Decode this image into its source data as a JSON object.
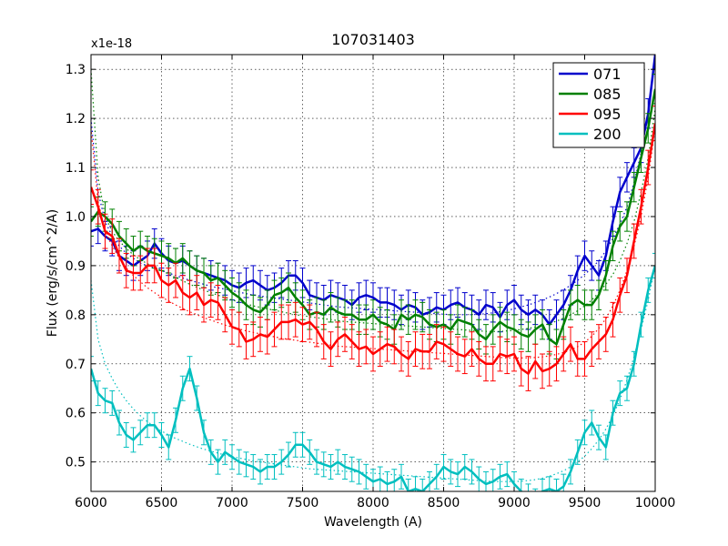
{
  "chart_data": {
    "type": "line",
    "title": "107031403",
    "xlabel": "Wavelength (A)",
    "ylabel": "Flux (erg/s/cm^2/A)",
    "y_offset_label": "x1e-18",
    "xlim": [
      6000,
      10000
    ],
    "ylim": [
      0.44,
      1.33
    ],
    "grid": true,
    "legend_position": "top-right",
    "x_ticks": [
      6000,
      6500,
      7000,
      7500,
      8000,
      8500,
      9000,
      9500,
      10000
    ],
    "y_ticks": [
      0.5,
      0.6,
      0.7,
      0.8,
      0.9,
      1.0,
      1.1,
      1.2,
      1.3
    ],
    "x_tick_labels": [
      "6000",
      "6500",
      "7000",
      "7500",
      "8000",
      "8500",
      "9000",
      "9500",
      "10000"
    ],
    "y_tick_labels": [
      "0.5",
      "0.6",
      "0.7",
      "0.8",
      "0.9",
      "1.0",
      "1.1",
      "1.2",
      "1.3"
    ],
    "x": [
      6000,
      6050,
      6100,
      6150,
      6200,
      6250,
      6300,
      6350,
      6400,
      6450,
      6500,
      6550,
      6600,
      6650,
      6700,
      6750,
      6800,
      6850,
      6900,
      6950,
      7000,
      7050,
      7100,
      7150,
      7200,
      7250,
      7300,
      7350,
      7400,
      7450,
      7500,
      7550,
      7600,
      7650,
      7700,
      7750,
      7800,
      7850,
      7900,
      7950,
      8000,
      8050,
      8100,
      8150,
      8200,
      8250,
      8300,
      8350,
      8400,
      8450,
      8500,
      8550,
      8600,
      8650,
      8700,
      8750,
      8800,
      8850,
      8900,
      8950,
      9000,
      9050,
      9100,
      9150,
      9200,
      9250,
      9300,
      9350,
      9400,
      9450,
      9500,
      9550,
      9600,
      9650,
      9700,
      9750,
      9800,
      9850,
      9900,
      9950,
      10000
    ],
    "series": [
      {
        "name": "071",
        "color": "#0000cc",
        "values": [
          0.97,
          0.975,
          0.96,
          0.95,
          0.92,
          0.91,
          0.9,
          0.91,
          0.92,
          0.945,
          0.925,
          0.91,
          0.905,
          0.91,
          0.9,
          0.89,
          0.885,
          0.88,
          0.875,
          0.87,
          0.86,
          0.855,
          0.865,
          0.87,
          0.86,
          0.85,
          0.855,
          0.865,
          0.88,
          0.88,
          0.865,
          0.84,
          0.835,
          0.83,
          0.84,
          0.835,
          0.83,
          0.82,
          0.835,
          0.84,
          0.835,
          0.825,
          0.825,
          0.82,
          0.81,
          0.82,
          0.815,
          0.8,
          0.805,
          0.815,
          0.81,
          0.82,
          0.825,
          0.815,
          0.81,
          0.8,
          0.82,
          0.815,
          0.795,
          0.82,
          0.83,
          0.81,
          0.8,
          0.81,
          0.8,
          0.78,
          0.8,
          0.82,
          0.85,
          0.89,
          0.92,
          0.9,
          0.88,
          0.92,
          0.99,
          1.05,
          1.08,
          1.11,
          1.14,
          1.21,
          1.33
        ],
        "err": 0.03,
        "fit": [
          1.2,
          1.05,
          0.99,
          0.96,
          0.94,
          0.925,
          0.915,
          0.905,
          0.9,
          0.895,
          0.89,
          0.885,
          0.88,
          0.875,
          0.87,
          0.866,
          0.862,
          0.858,
          0.855,
          0.852,
          0.849,
          0.846,
          0.843,
          0.84,
          0.838,
          0.836,
          0.834,
          0.832,
          0.83,
          0.828,
          0.826,
          0.824,
          0.822,
          0.82,
          0.818,
          0.816,
          0.815,
          0.814,
          0.813,
          0.812,
          0.811,
          0.81,
          0.809,
          0.808,
          0.807,
          0.806,
          0.805,
          0.804,
          0.803,
          0.802,
          0.801,
          0.8,
          0.8,
          0.8,
          0.8,
          0.801,
          0.802,
          0.804,
          0.806,
          0.809,
          0.812,
          0.816,
          0.82,
          0.825,
          0.83,
          0.836,
          0.843,
          0.851,
          0.86,
          0.87,
          0.882,
          0.895,
          0.91,
          0.93,
          0.955,
          0.985,
          1.02,
          1.07,
          1.13,
          1.21,
          1.33
        ]
      },
      {
        "name": "085",
        "color": "#008000",
        "values": [
          0.99,
          1.01,
          1.0,
          0.985,
          0.96,
          0.945,
          0.93,
          0.94,
          0.93,
          0.925,
          0.92,
          0.915,
          0.905,
          0.915,
          0.9,
          0.89,
          0.885,
          0.87,
          0.875,
          0.86,
          0.845,
          0.835,
          0.82,
          0.81,
          0.805,
          0.82,
          0.84,
          0.845,
          0.855,
          0.835,
          0.82,
          0.8,
          0.805,
          0.8,
          0.815,
          0.805,
          0.8,
          0.8,
          0.79,
          0.79,
          0.8,
          0.785,
          0.78,
          0.77,
          0.8,
          0.79,
          0.8,
          0.795,
          0.78,
          0.775,
          0.78,
          0.77,
          0.79,
          0.785,
          0.78,
          0.76,
          0.75,
          0.77,
          0.785,
          0.775,
          0.77,
          0.76,
          0.755,
          0.77,
          0.78,
          0.75,
          0.74,
          0.78,
          0.82,
          0.83,
          0.82,
          0.82,
          0.84,
          0.88,
          0.94,
          0.98,
          1.0,
          1.06,
          1.12,
          1.18,
          1.26
        ],
        "err": 0.03,
        "fit": [
          1.3,
          1.08,
          1.0,
          0.97,
          0.95,
          0.935,
          0.922,
          0.912,
          0.904,
          0.897,
          0.89,
          0.883,
          0.876,
          0.869,
          0.862,
          0.856,
          0.85,
          0.845,
          0.84,
          0.835,
          0.83,
          0.826,
          0.822,
          0.818,
          0.815,
          0.812,
          0.809,
          0.806,
          0.803,
          0.8,
          0.798,
          0.796,
          0.794,
          0.792,
          0.79,
          0.788,
          0.786,
          0.785,
          0.784,
          0.783,
          0.782,
          0.781,
          0.78,
          0.779,
          0.778,
          0.777,
          0.776,
          0.775,
          0.774,
          0.773,
          0.772,
          0.771,
          0.77,
          0.769,
          0.768,
          0.767,
          0.766,
          0.766,
          0.766,
          0.767,
          0.768,
          0.77,
          0.772,
          0.775,
          0.778,
          0.782,
          0.787,
          0.793,
          0.8,
          0.808,
          0.818,
          0.83,
          0.845,
          0.862,
          0.882,
          0.91,
          0.945,
          0.99,
          1.05,
          1.12,
          1.22
        ]
      },
      {
        "name": "095",
        "color": "#ff0000",
        "values": [
          1.06,
          1.02,
          0.97,
          0.96,
          0.92,
          0.89,
          0.885,
          0.885,
          0.9,
          0.9,
          0.87,
          0.86,
          0.87,
          0.845,
          0.835,
          0.845,
          0.82,
          0.83,
          0.825,
          0.8,
          0.775,
          0.77,
          0.745,
          0.75,
          0.76,
          0.755,
          0.77,
          0.785,
          0.785,
          0.79,
          0.78,
          0.785,
          0.77,
          0.745,
          0.73,
          0.75,
          0.76,
          0.745,
          0.73,
          0.735,
          0.72,
          0.73,
          0.74,
          0.735,
          0.72,
          0.71,
          0.73,
          0.725,
          0.725,
          0.745,
          0.74,
          0.73,
          0.72,
          0.715,
          0.73,
          0.71,
          0.7,
          0.7,
          0.72,
          0.715,
          0.72,
          0.69,
          0.68,
          0.705,
          0.685,
          0.69,
          0.7,
          0.72,
          0.74,
          0.71,
          0.71,
          0.73,
          0.745,
          0.76,
          0.79,
          0.84,
          0.88,
          0.95,
          1.02,
          1.1,
          1.19
        ],
        "err": 0.035,
        "fit": [
          1.18,
          1.03,
          0.97,
          0.94,
          0.915,
          0.895,
          0.88,
          0.867,
          0.855,
          0.845,
          0.836,
          0.828,
          0.82,
          0.813,
          0.806,
          0.8,
          0.794,
          0.789,
          0.784,
          0.779,
          0.775,
          0.771,
          0.767,
          0.764,
          0.761,
          0.758,
          0.755,
          0.752,
          0.75,
          0.748,
          0.746,
          0.744,
          0.742,
          0.74,
          0.738,
          0.736,
          0.735,
          0.734,
          0.733,
          0.732,
          0.731,
          0.73,
          0.729,
          0.728,
          0.727,
          0.726,
          0.725,
          0.724,
          0.723,
          0.722,
          0.721,
          0.72,
          0.719,
          0.718,
          0.717,
          0.716,
          0.715,
          0.714,
          0.713,
          0.712,
          0.712,
          0.712,
          0.712,
          0.713,
          0.714,
          0.716,
          0.719,
          0.723,
          0.728,
          0.735,
          0.744,
          0.756,
          0.772,
          0.792,
          0.818,
          0.85,
          0.89,
          0.94,
          1.0,
          1.08,
          1.18
        ]
      },
      {
        "name": "200",
        "color": "#00bfbf",
        "values": [
          0.69,
          0.64,
          0.625,
          0.62,
          0.58,
          0.555,
          0.545,
          0.56,
          0.575,
          0.575,
          0.555,
          0.53,
          0.585,
          0.65,
          0.69,
          0.63,
          0.56,
          0.52,
          0.5,
          0.52,
          0.51,
          0.5,
          0.495,
          0.49,
          0.48,
          0.49,
          0.49,
          0.5,
          0.515,
          0.535,
          0.535,
          0.52,
          0.5,
          0.495,
          0.49,
          0.5,
          0.49,
          0.485,
          0.48,
          0.47,
          0.46,
          0.465,
          0.455,
          0.46,
          0.47,
          0.44,
          0.445,
          0.44,
          0.455,
          0.47,
          0.49,
          0.48,
          0.475,
          0.49,
          0.48,
          0.465,
          0.455,
          0.46,
          0.47,
          0.475,
          0.455,
          0.44,
          0.43,
          0.42,
          0.44,
          0.445,
          0.44,
          0.45,
          0.48,
          0.52,
          0.56,
          0.58,
          0.55,
          0.53,
          0.6,
          0.64,
          0.65,
          0.7,
          0.78,
          0.85,
          0.9
        ],
        "err": 0.025,
        "fit": [
          0.87,
          0.75,
          0.7,
          0.67,
          0.645,
          0.625,
          0.608,
          0.594,
          0.582,
          0.572,
          0.563,
          0.555,
          0.548,
          0.542,
          0.536,
          0.531,
          0.526,
          0.522,
          0.518,
          0.514,
          0.511,
          0.508,
          0.505,
          0.502,
          0.5,
          0.498,
          0.496,
          0.494,
          0.492,
          0.49,
          0.488,
          0.486,
          0.485,
          0.484,
          0.483,
          0.482,
          0.481,
          0.48,
          0.479,
          0.478,
          0.477,
          0.476,
          0.475,
          0.474,
          0.473,
          0.472,
          0.471,
          0.47,
          0.469,
          0.468,
          0.467,
          0.466,
          0.465,
          0.464,
          0.463,
          0.462,
          0.461,
          0.46,
          0.46,
          0.46,
          0.46,
          0.461,
          0.462,
          0.464,
          0.467,
          0.471,
          0.476,
          0.482,
          0.49,
          0.5,
          0.512,
          0.527,
          0.545,
          0.567,
          0.594,
          0.627,
          0.667,
          0.715,
          0.77,
          0.83,
          0.9
        ]
      }
    ]
  }
}
